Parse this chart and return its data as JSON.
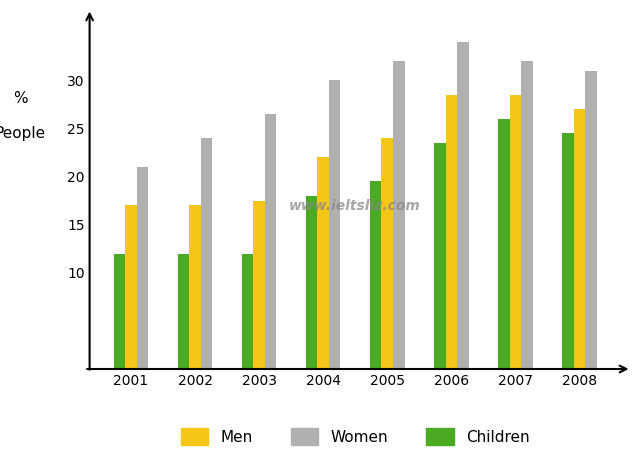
{
  "years": [
    "2001",
    "2002",
    "2003",
    "2004",
    "2005",
    "2006",
    "2007",
    "2008"
  ],
  "men": [
    17,
    17,
    17.5,
    22,
    24,
    28.5,
    28.5,
    27
  ],
  "women": [
    21,
    24,
    26.5,
    30,
    32,
    34,
    32,
    31
  ],
  "children": [
    12,
    12,
    12,
    18,
    19.5,
    23.5,
    26,
    24.5
  ],
  "men_color": "#f5c518",
  "women_color": "#b0b0b0",
  "children_color": "#4aaa22",
  "ylabel_line1": "%",
  "ylabel_line2": "People",
  "ylim": [
    0,
    36
  ],
  "yticks": [
    10,
    15,
    20,
    25,
    30
  ],
  "watermark": "www.ieltsliz.com",
  "legend_labels": [
    "Men",
    "Women",
    "Children"
  ],
  "bar_width": 0.18
}
